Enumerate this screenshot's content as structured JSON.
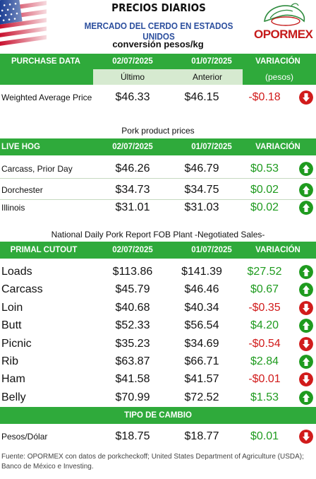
{
  "header": {
    "title": "PRECIOS DIARIOS",
    "subtitle": "MERCADO DEL CERDO EN ESTADOS UNIDOS",
    "logo_text": "OPORMEX",
    "units": "conversión pesos/kg"
  },
  "purchase": {
    "heading": "PURCHASE DATA",
    "date1": "02/07/2025",
    "date2": "01/07/2025",
    "variation": "VARIACIÓN",
    "sub1": "Último",
    "sub2": "Anterior",
    "sub3": "(pesos)",
    "rows": [
      {
        "label": "Weighted Average Price",
        "v1": "$46.33",
        "v2": "$46.15",
        "var": "-$0.18",
        "dir": "down"
      }
    ]
  },
  "pork": {
    "section_title": "Pork product prices",
    "heading": "LIVE HOG",
    "date1": "02/07/2025",
    "date2": "01/07/2025",
    "variation": "VARIACIÓN",
    "rows": [
      {
        "label": "Carcass, Prior Day",
        "v1": "$46.26",
        "v2": "$46.79",
        "var": "$0.53",
        "dir": "up"
      },
      {
        "label": "Dorchester",
        "v1": "$34.73",
        "v2": "$34.75",
        "var": "$0.02",
        "dir": "up"
      },
      {
        "label": "Illinois",
        "v1": "$31.01",
        "v2": "$31.03",
        "var": "$0.02",
        "dir": "up"
      }
    ]
  },
  "primal": {
    "section_title": "National Daily Pork Report FOB Plant -Negotiated Sales-",
    "heading": "PRIMAL CUTOUT",
    "date1": "02/07/2025",
    "date2": "01/07/2025",
    "variation": "VARIACIÓN",
    "rows": [
      {
        "label": "Loads",
        "v1": "$113.86",
        "v2": "$141.39",
        "var": "$27.52",
        "dir": "up"
      },
      {
        "label": "Carcass",
        "v1": "$45.79",
        "v2": "$46.46",
        "var": "$0.67",
        "dir": "up"
      },
      {
        "label": "Loin",
        "v1": "$40.68",
        "v2": "$40.34",
        "var": "-$0.35",
        "dir": "down"
      },
      {
        "label": "Butt",
        "v1": "$52.33",
        "v2": "$56.54",
        "var": "$4.20",
        "dir": "up"
      },
      {
        "label": "Picnic",
        "v1": "$35.23",
        "v2": "$34.69",
        "var": "-$0.54",
        "dir": "down"
      },
      {
        "label": "Rib",
        "v1": "$63.87",
        "v2": "$66.71",
        "var": "$2.84",
        "dir": "up"
      },
      {
        "label": "Ham",
        "v1": "$41.58",
        "v2": "$41.57",
        "var": "-$0.01",
        "dir": "down"
      },
      {
        "label": "Belly",
        "v1": "$70.99",
        "v2": "$72.52",
        "var": "$1.53",
        "dir": "up"
      }
    ]
  },
  "exchange": {
    "heading": "TIPO DE CAMBIO",
    "rows": [
      {
        "label": "Pesos/Dólar",
        "v1": "$18.75",
        "v2": "$18.77",
        "var": "$0.01",
        "dir": "down"
      }
    ]
  },
  "footer": {
    "text": "Fuente: OPORMEX con datos de porkcheckoff; United States Department of Agriculture (USDA); Banco de México e Investing."
  },
  "colors": {
    "green": "#2faa3b",
    "arrow_up": "#1f9b1f",
    "arrow_down": "#d11b1b",
    "subtitle_blue": "#2c4f9e"
  },
  "icons": {
    "up": "arrow-up-circle-icon",
    "down": "arrow-down-circle-icon"
  }
}
